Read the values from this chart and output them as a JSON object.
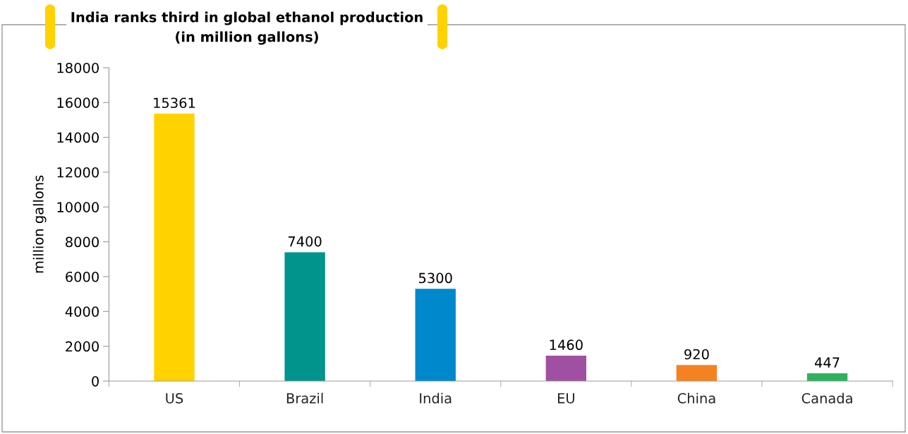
{
  "chart_data": {
    "type": "bar",
    "title": "India ranks third in global ethanol production\n(in million gallons)",
    "ylabel": "million gallons",
    "categories": [
      "US",
      "Brazil",
      "India",
      "EU",
      "China",
      "Canada"
    ],
    "values": [
      15361,
      7400,
      5300,
      1460,
      920,
      447
    ],
    "colors": [
      "#ffd200",
      "#00948c",
      "#0088cc",
      "#a050a0",
      "#f58220",
      "#2db35d"
    ],
    "ylim": [
      0,
      18000
    ],
    "yticks": [
      0,
      2000,
      4000,
      6000,
      8000,
      10000,
      12000,
      14000,
      16000,
      18000
    ],
    "data_labels": true,
    "grid": false,
    "legend": false
  }
}
